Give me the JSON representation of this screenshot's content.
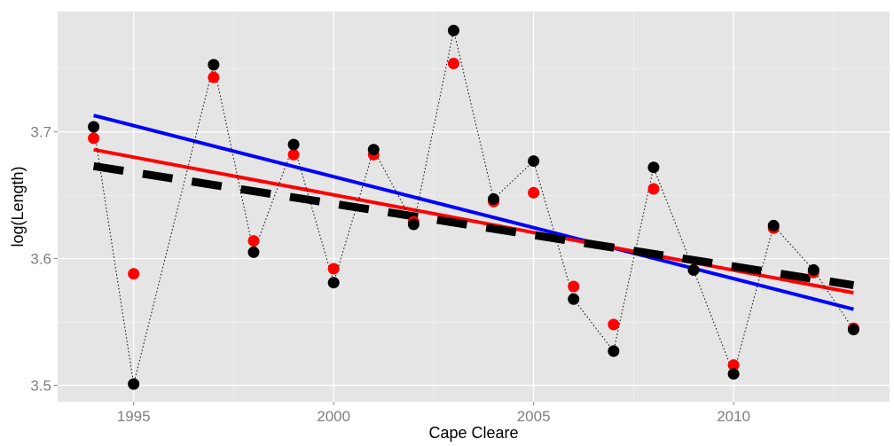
{
  "chart_data": {
    "type": "scatter",
    "xlabel": "Cape Cleare",
    "ylabel": "log(Length)",
    "xlim": [
      1993.1,
      2013.9
    ],
    "ylim": [
      3.487,
      3.795
    ],
    "x_ticks": [
      1995,
      2000,
      2005,
      2010
    ],
    "x_tick_labels": [
      "1995",
      "2000",
      "2005",
      "2010"
    ],
    "y_ticks": [
      3.5,
      3.6,
      3.7
    ],
    "y_tick_labels": [
      "3.5",
      "3.6",
      "3.7"
    ],
    "grid": true,
    "panel_background": "#e5e5e5",
    "series": [
      {
        "kind": "points",
        "color": "#000000",
        "connected": true,
        "x": [
          1994,
          1995,
          1997,
          1998,
          1999,
          2000,
          2001,
          2002,
          2003,
          2004,
          2005,
          2006,
          2007,
          2008,
          2009,
          2010,
          2011,
          2012,
          2013
        ],
        "y": [
          3.704,
          3.501,
          3.753,
          3.605,
          3.69,
          3.581,
          3.686,
          3.627,
          3.78,
          3.647,
          3.677,
          3.568,
          3.527,
          3.672,
          3.591,
          3.509,
          3.626,
          3.591,
          3.544
        ]
      },
      {
        "kind": "points",
        "color": "#ff0000",
        "x": [
          1994,
          1995,
          1997,
          1998,
          1999,
          2000,
          2001,
          2002,
          2003,
          2004,
          2005,
          2006,
          2007,
          2008,
          2009,
          2010,
          2011,
          2012,
          2013
        ],
        "y": [
          3.695,
          3.588,
          3.743,
          3.614,
          3.682,
          3.592,
          3.682,
          3.629,
          3.754,
          3.645,
          3.652,
          3.578,
          3.548,
          3.655,
          3.591,
          3.516,
          3.624,
          3.589,
          3.545
        ]
      },
      {
        "kind": "trend",
        "color": "#0000ff",
        "style": "solid",
        "x": [
          1994,
          2013
        ],
        "y": [
          3.713,
          3.56
        ]
      },
      {
        "kind": "trend",
        "color": "#ff0000",
        "style": "solid",
        "x": [
          1994,
          2013
        ],
        "y": [
          3.686,
          3.573
        ]
      },
      {
        "kind": "trend",
        "color": "#000000",
        "style": "dashed",
        "x": [
          1994,
          2013
        ],
        "y": [
          3.673,
          3.579
        ]
      }
    ]
  }
}
